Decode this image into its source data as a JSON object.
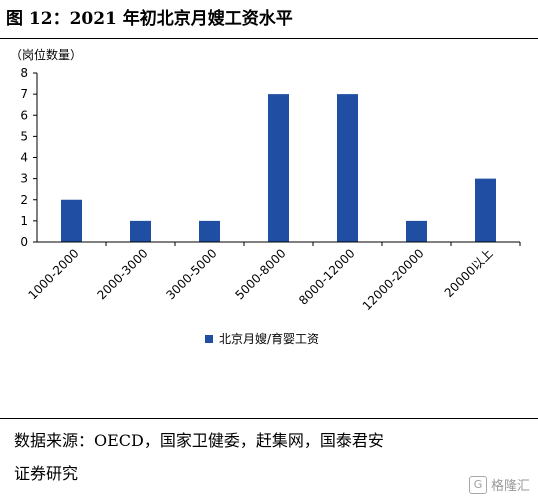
{
  "title": "图 12：2021 年初北京月嫂工资水平",
  "unit_label": "（岗位数量）",
  "chart_data": {
    "type": "bar",
    "categories": [
      "1000-2000",
      "2000-3000",
      "3000-5000",
      "5000-8000",
      "8000-12000",
      "12000-20000",
      "20000以上"
    ],
    "series": [
      {
        "name": "北京月嫂/育婴工资",
        "values": [
          2,
          1,
          1,
          7,
          7,
          1,
          3
        ],
        "color": "#1f4ea3"
      }
    ],
    "y_ticks": [
      "0",
      "1",
      "2",
      "3",
      "4",
      "5",
      "6",
      "7",
      "8"
    ],
    "ylim": [
      0,
      8
    ],
    "grid": false,
    "legend": "bottom"
  },
  "source": {
    "line1": "数据来源：OECD，国家卫健委，赶集网，国泰君安",
    "line2": "证券研究"
  },
  "watermark": {
    "icon": "G",
    "text": "格隆汇"
  }
}
